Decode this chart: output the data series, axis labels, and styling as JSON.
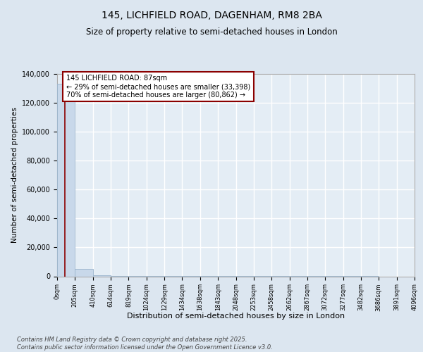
{
  "title": "145, LICHFIELD ROAD, DAGENHAM, RM8 2BA",
  "subtitle": "Size of property relative to semi-detached houses in London",
  "xlabel": "Distribution of semi-detached houses by size in London",
  "ylabel": "Number of semi-detached properties",
  "footer": "Contains HM Land Registry data © Crown copyright and database right 2025.\nContains public sector information licensed under the Open Government Licence v3.0.",
  "annotation_line1": "145 LICHFIELD ROAD: 87sqm",
  "annotation_line2": "← 29% of semi-detached houses are smaller (33,398)",
  "annotation_line3": "70% of semi-detached houses are larger (80,862) →",
  "subject_sqm": 87,
  "bar_color": "#c8d8ea",
  "bar_edge_color": "#9ab4cc",
  "subject_line_color": "#8b0000",
  "annotation_border_color": "#8b0000",
  "background_color": "#dce6f0",
  "plot_bg_color": "#e4edf5",
  "grid_color": "#c8d8e8",
  "bin_edges": [
    0,
    205,
    410,
    614,
    819,
    1024,
    1229,
    1434,
    1638,
    1843,
    2048,
    2253,
    2458,
    2662,
    2867,
    3072,
    3277,
    3482,
    3686,
    3891,
    4096
  ],
  "bin_labels": [
    "0sqm",
    "205sqm",
    "410sqm",
    "614sqm",
    "819sqm",
    "1024sqm",
    "1229sqm",
    "1434sqm",
    "1638sqm",
    "1843sqm",
    "2048sqm",
    "2253sqm",
    "2458sqm",
    "2662sqm",
    "2867sqm",
    "3072sqm",
    "3277sqm",
    "3482sqm",
    "3686sqm",
    "3891sqm",
    "4096sqm"
  ],
  "bar_heights": [
    133000,
    5200,
    600,
    180,
    80,
    40,
    20,
    10,
    8,
    5,
    4,
    3,
    2,
    2,
    1,
    1,
    1,
    1,
    0,
    0
  ],
  "ylim": [
    0,
    140000
  ],
  "yticks": [
    0,
    20000,
    40000,
    60000,
    80000,
    100000,
    120000,
    140000
  ]
}
